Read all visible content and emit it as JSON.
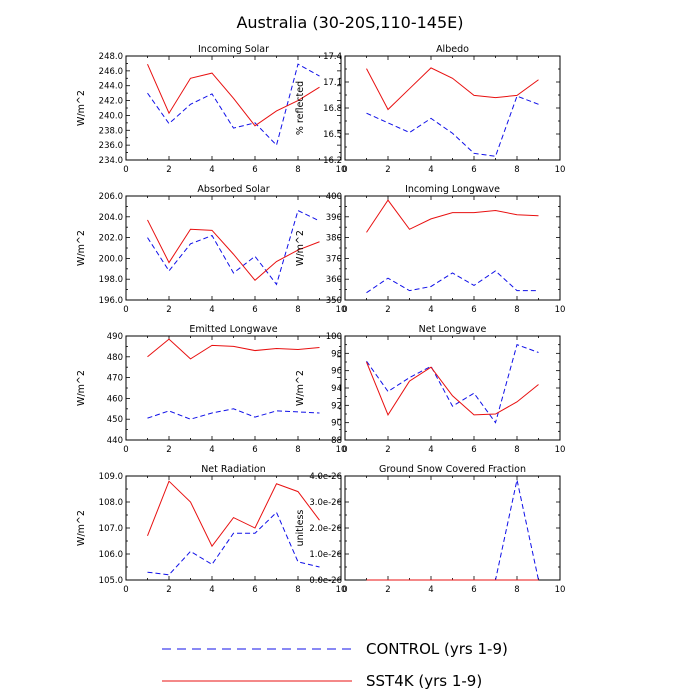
{
  "title": "Australia (30-20S,110-145E)",
  "colors": {
    "CONTROL": "#1010e8",
    "SST4K": "#e81010"
  },
  "legend": {
    "placement": "bottom-center",
    "entries": [
      {
        "name": "CONTROL (yrs 1-9)",
        "style": "dashed",
        "color": "#1010e8"
      },
      {
        "name": "SST4K (yrs 1-9)",
        "style": "solid",
        "color": "#e81010"
      }
    ]
  },
  "chart_data": [
    {
      "type": "line",
      "title": "Incoming Solar",
      "ylabel": "W/m^2",
      "xlim": [
        0,
        10
      ],
      "ylim": [
        234,
        248
      ],
      "xticks": [
        "0",
        "2",
        "4",
        "6",
        "8",
        "10"
      ],
      "yticks": [
        "234.0",
        "236.0",
        "238.0",
        "240.0",
        "242.0",
        "244.0",
        "246.0",
        "248.0"
      ],
      "x": [
        1,
        2,
        3,
        4,
        5,
        6,
        7,
        8,
        9
      ],
      "series": [
        {
          "key": "CONTROL",
          "values": [
            243.0,
            238.9,
            241.5,
            242.9,
            238.3,
            239.0,
            236.0,
            246.9,
            245.3
          ]
        },
        {
          "key": "SST4K",
          "values": [
            246.9,
            240.3,
            245.0,
            245.7,
            242.3,
            238.6,
            240.6,
            242.0,
            243.8
          ]
        }
      ]
    },
    {
      "type": "line",
      "title": "Albedo",
      "ylabel": "% reflected",
      "xlim": [
        0,
        10
      ],
      "ylim": [
        16.2,
        17.6
      ],
      "xticks": [
        "0",
        "2",
        "4",
        "6",
        "8",
        "10"
      ],
      "yticks": [
        "16.2",
        "16.5",
        "16.8",
        "17.1",
        "17.4"
      ],
      "x": [
        1,
        2,
        3,
        4,
        5,
        6,
        7,
        8,
        9
      ],
      "series": [
        {
          "key": "CONTROL",
          "values": [
            16.83,
            16.7,
            16.57,
            16.76,
            16.56,
            16.29,
            16.25,
            17.06,
            16.95
          ]
        },
        {
          "key": "SST4K",
          "values": [
            17.43,
            16.88,
            17.16,
            17.44,
            17.3,
            17.07,
            17.04,
            17.07,
            17.28
          ]
        }
      ]
    },
    {
      "type": "line",
      "title": "Absorbed Solar",
      "ylabel": "W/m^2",
      "xlim": [
        0,
        10
      ],
      "ylim": [
        196,
        206
      ],
      "xticks": [
        "0",
        "2",
        "4",
        "6",
        "8",
        "10"
      ],
      "yticks": [
        "196.0",
        "198.0",
        "200.0",
        "202.0",
        "204.0",
        "206.0"
      ],
      "x": [
        1,
        2,
        3,
        4,
        5,
        6,
        7,
        8,
        9
      ],
      "series": [
        {
          "key": "CONTROL",
          "values": [
            202.0,
            198.8,
            201.4,
            202.2,
            198.6,
            200.2,
            197.5,
            204.6,
            203.6
          ]
        },
        {
          "key": "SST4K",
          "values": [
            203.7,
            199.6,
            202.8,
            202.7,
            200.4,
            197.9,
            199.7,
            200.8,
            201.6
          ]
        }
      ]
    },
    {
      "type": "line",
      "title": "Incoming Longwave",
      "ylabel": "W/m^2",
      "xlim": [
        0,
        10
      ],
      "ylim": [
        350,
        400
      ],
      "xticks": [
        "0",
        "2",
        "4",
        "6",
        "8",
        "10"
      ],
      "yticks": [
        "350",
        "360",
        "370",
        "380",
        "390",
        "400"
      ],
      "x": [
        1,
        2,
        3,
        4,
        5,
        6,
        7,
        8,
        9
      ],
      "series": [
        {
          "key": "CONTROL",
          "values": [
            353.5,
            360.5,
            354.5,
            356.5,
            363.0,
            357.0,
            364.0,
            354.5,
            354.5
          ]
        },
        {
          "key": "SST4K",
          "values": [
            382.5,
            398.0,
            384.0,
            389.0,
            392.0,
            392.0,
            393.0,
            391.0,
            390.5
          ]
        }
      ]
    },
    {
      "type": "line",
      "title": "Emitted Longwave",
      "ylabel": "W/m^2",
      "xlim": [
        0,
        10
      ],
      "ylim": [
        440,
        490
      ],
      "xticks": [
        "0",
        "2",
        "4",
        "6",
        "8",
        "10"
      ],
      "yticks": [
        "440",
        "450",
        "460",
        "470",
        "480",
        "490"
      ],
      "x": [
        1,
        2,
        3,
        4,
        5,
        6,
        7,
        8,
        9
      ],
      "series": [
        {
          "key": "CONTROL",
          "values": [
            450.5,
            454.0,
            450.0,
            453.0,
            455.0,
            451.0,
            454.0,
            453.5,
            453.0
          ]
        },
        {
          "key": "SST4K",
          "values": [
            480.0,
            488.5,
            479.0,
            485.5,
            485.0,
            483.0,
            484.0,
            483.5,
            484.5
          ]
        }
      ]
    },
    {
      "type": "line",
      "title": "Net Longwave",
      "ylabel": "W/m^2",
      "xlim": [
        0,
        10
      ],
      "ylim": [
        88,
        100
      ],
      "xticks": [
        "0",
        "2",
        "4",
        "6",
        "8",
        "10"
      ],
      "yticks": [
        "88",
        "90",
        "92",
        "94",
        "96",
        "98",
        "100"
      ],
      "x": [
        1,
        2,
        3,
        4,
        5,
        6,
        7,
        8,
        9
      ],
      "series": [
        {
          "key": "CONTROL",
          "values": [
            97.1,
            93.6,
            95.2,
            96.5,
            91.9,
            93.4,
            90.0,
            99.0,
            98.1
          ]
        },
        {
          "key": "SST4K",
          "values": [
            97.0,
            90.9,
            94.8,
            96.4,
            93.1,
            90.9,
            91.0,
            92.4,
            94.4
          ]
        }
      ]
    },
    {
      "type": "line",
      "title": "Net Radiation",
      "ylabel": "W/m^2",
      "xlim": [
        0,
        10
      ],
      "ylim": [
        105,
        109
      ],
      "xticks": [
        "0",
        "2",
        "4",
        "6",
        "8",
        "10"
      ],
      "yticks": [
        "105.0",
        "106.0",
        "107.0",
        "108.0",
        "109.0"
      ],
      "x": [
        1,
        2,
        3,
        4,
        5,
        6,
        7,
        8,
        9
      ],
      "series": [
        {
          "key": "CONTROL",
          "values": [
            105.3,
            105.2,
            106.1,
            105.6,
            106.8,
            106.8,
            107.6,
            105.7,
            105.5
          ]
        },
        {
          "key": "SST4K",
          "values": [
            106.7,
            108.8,
            108.0,
            106.3,
            107.4,
            107.0,
            108.7,
            108.4,
            107.3
          ]
        }
      ]
    },
    {
      "type": "line",
      "title": "Ground Snow Covered Fraction",
      "ylabel": "unitless",
      "xlim": [
        0,
        10
      ],
      "ylim": [
        0,
        4e-26
      ],
      "xticks": [
        "0",
        "2",
        "4",
        "6",
        "8",
        "10"
      ],
      "yticks": [
        "0.0e-26",
        "1.0e-26",
        "2.0e-26",
        "3.0e-26",
        "4.0e-26"
      ],
      "x": [
        1,
        2,
        3,
        4,
        5,
        6,
        7,
        8,
        9
      ],
      "series": [
        {
          "key": "CONTROL",
          "values": [
            0,
            0,
            0,
            0,
            0,
            0,
            0,
            3.85e-26,
            0
          ]
        },
        {
          "key": "SST4K",
          "values": [
            0,
            0,
            0,
            0,
            0,
            0,
            0,
            0,
            0
          ]
        }
      ]
    }
  ]
}
